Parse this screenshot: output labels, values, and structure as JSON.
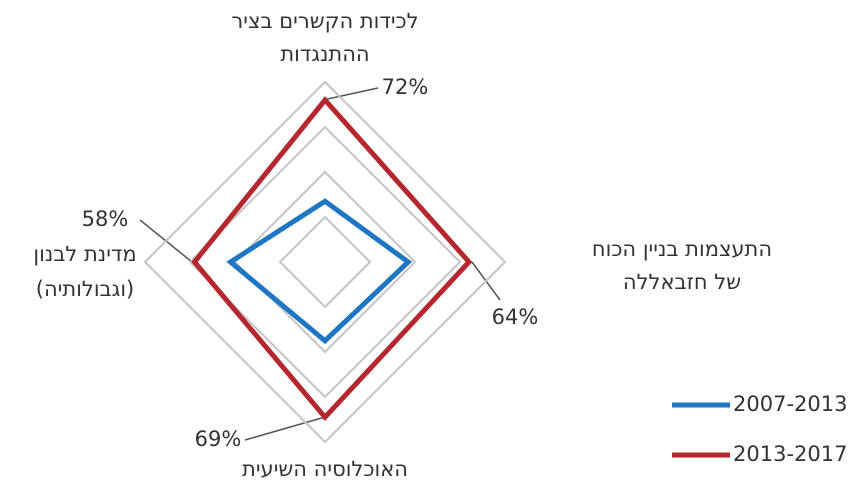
{
  "chart_data": {
    "type": "radar",
    "categories": [
      [
        "לכידות הקשרים בציר",
        "ההתנגדות"
      ],
      [
        "התעצמות בניין הכוח",
        "של חזבאללה"
      ],
      [
        "האוכלוסיה השיעית"
      ],
      [
        "מדינת לבנון",
        "(וגבולותיה)"
      ]
    ],
    "series": [
      {
        "name": "2007-2013",
        "color": "#1f77c4",
        "values": [
          27,
          37,
          35,
          42
        ]
      },
      {
        "name": "2013-2017",
        "color": "#b5272d",
        "values": [
          72,
          64,
          69,
          58
        ],
        "value_labels": [
          "72%",
          "64%",
          "69%",
          "58%"
        ]
      }
    ],
    "ylim": [
      0,
      80
    ],
    "yticks": [
      0,
      20,
      40,
      60,
      80
    ],
    "grid": true,
    "legend": "lower right"
  }
}
